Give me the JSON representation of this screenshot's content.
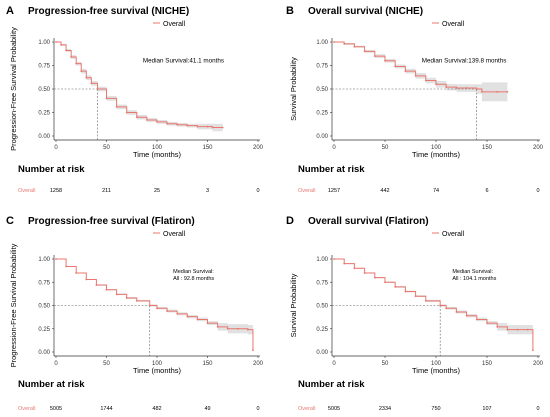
{
  "chart_data": [
    {
      "type": "line",
      "panel_label": "A",
      "title": "Progression-free survival (NICHE)",
      "legend": "Overall",
      "xlabel": "Time (months)",
      "ylabel": "Progression-Free Survival Probability",
      "xlim": [
        0,
        200
      ],
      "ylim": [
        0,
        1
      ],
      "x_ticks": [
        "0",
        "50",
        "100",
        "150",
        "200"
      ],
      "y_ticks": [
        "0.00",
        "0.25",
        "0.50",
        "0.75",
        "1.00"
      ],
      "median_label": "Median Survival:41.1 months",
      "median": 41.1,
      "series": [
        {
          "name": "Overall",
          "color": "#e8776f",
          "x": [
            0,
            5,
            10,
            15,
            20,
            25,
            30,
            35,
            41.1,
            50,
            60,
            70,
            80,
            90,
            100,
            110,
            120,
            130,
            140,
            150,
            155,
            165
          ],
          "y": [
            1.0,
            0.97,
            0.91,
            0.84,
            0.77,
            0.69,
            0.62,
            0.56,
            0.5,
            0.4,
            0.31,
            0.25,
            0.2,
            0.17,
            0.15,
            0.13,
            0.12,
            0.11,
            0.1,
            0.1,
            0.09,
            0.09
          ],
          "ci_width": [
            0,
            0.01,
            0.015,
            0.02,
            0.02,
            0.025,
            0.025,
            0.025,
            0.025,
            0.025,
            0.025,
            0.025,
            0.025,
            0.02,
            0.02,
            0.02,
            0.02,
            0.02,
            0.03,
            0.03,
            0.04,
            0.06
          ]
        }
      ],
      "risk_table": {
        "title": "Number at risk",
        "label": "Overall",
        "times": [
          0,
          50,
          100,
          150,
          200
        ],
        "counts": [
          "1258",
          "211",
          "25",
          "3",
          "0"
        ]
      }
    },
    {
      "type": "line",
      "panel_label": "B",
      "title": "Overall survival (NICHE)",
      "legend": "Overall",
      "xlabel": "Time (months)",
      "ylabel": "Survival Probability",
      "xlim": [
        0,
        200
      ],
      "ylim": [
        0,
        1
      ],
      "x_ticks": [
        "0",
        "50",
        "100",
        "150",
        "200"
      ],
      "y_ticks": [
        "0.00",
        "0.25",
        "0.50",
        "0.75",
        "1.00"
      ],
      "median_label": "Median Survival:139.8 months",
      "median": 139.8,
      "series": [
        {
          "name": "Overall",
          "color": "#e8776f",
          "x": [
            0,
            10,
            20,
            30,
            40,
            50,
            60,
            70,
            80,
            90,
            100,
            110,
            120,
            130,
            139.8,
            145,
            160,
            170
          ],
          "y": [
            1.0,
            0.98,
            0.95,
            0.9,
            0.85,
            0.8,
            0.74,
            0.69,
            0.64,
            0.59,
            0.55,
            0.52,
            0.51,
            0.51,
            0.5,
            0.47,
            0.47,
            0.47
          ],
          "ci_width": [
            0,
            0.01,
            0.01,
            0.015,
            0.02,
            0.02,
            0.02,
            0.025,
            0.03,
            0.03,
            0.035,
            0.035,
            0.04,
            0.04,
            0.05,
            0.1,
            0.1,
            0.1
          ]
        }
      ],
      "risk_table": {
        "title": "Number at risk",
        "label": "Overall",
        "times": [
          0,
          50,
          100,
          150,
          200
        ],
        "counts": [
          "1257",
          "442",
          "74",
          "6",
          "0"
        ]
      }
    },
    {
      "type": "line",
      "panel_label": "C",
      "title": "Progression-free survival (Flatiron)",
      "legend": "Overall",
      "xlabel": "Time (months)",
      "ylabel": "Progression-Free Survival Probability",
      "xlim": [
        0,
        200
      ],
      "ylim": [
        0,
        1
      ],
      "x_ticks": [
        "0",
        "50",
        "100",
        "150",
        "200"
      ],
      "y_ticks": [
        "0.00",
        "0.25",
        "0.50",
        "0.75",
        "1.00"
      ],
      "median_label_lines": [
        "Median Survival:",
        "All : 92.8  months"
      ],
      "median": 92.8,
      "series": [
        {
          "name": "Overall",
          "color": "#e8776f",
          "x": [
            0,
            10,
            20,
            30,
            40,
            50,
            60,
            70,
            80,
            92.8,
            100,
            110,
            120,
            130,
            140,
            150,
            160,
            170,
            180,
            190,
            195
          ],
          "y": [
            1.0,
            0.92,
            0.85,
            0.78,
            0.72,
            0.67,
            0.62,
            0.58,
            0.55,
            0.5,
            0.47,
            0.44,
            0.41,
            0.38,
            0.35,
            0.31,
            0.27,
            0.25,
            0.25,
            0.24,
            0.02
          ],
          "ci_width": [
            0,
            0.005,
            0.005,
            0.006,
            0.007,
            0.008,
            0.009,
            0.01,
            0.01,
            0.012,
            0.013,
            0.015,
            0.016,
            0.018,
            0.02,
            0.02,
            0.04,
            0.05,
            0.05,
            0.05,
            0.02
          ]
        }
      ],
      "risk_table": {
        "title": "Number at risk",
        "label": "Overall",
        "times": [
          0,
          50,
          100,
          150,
          200
        ],
        "counts": [
          "5005",
          "1744",
          "482",
          "49",
          "0"
        ]
      }
    },
    {
      "type": "line",
      "panel_label": "D",
      "title": "Overall survival (Flatiron)",
      "legend": "Overall",
      "xlabel": "Time (months)",
      "ylabel": "Survival Probability",
      "xlim": [
        0,
        200
      ],
      "ylim": [
        0,
        1
      ],
      "x_ticks": [
        "0",
        "50",
        "100",
        "150",
        "200"
      ],
      "y_ticks": [
        "0.00",
        "0.25",
        "0.50",
        "0.75",
        "1.00"
      ],
      "median_label_lines": [
        "Median Survival:",
        "All : 104.1  months"
      ],
      "median": 104.1,
      "series": [
        {
          "name": "Overall",
          "color": "#e8776f",
          "x": [
            0,
            10,
            20,
            30,
            40,
            50,
            60,
            70,
            80,
            90,
            104.1,
            110,
            120,
            130,
            140,
            150,
            160,
            170,
            180,
            190,
            195
          ],
          "y": [
            1.0,
            0.95,
            0.9,
            0.85,
            0.8,
            0.75,
            0.7,
            0.65,
            0.6,
            0.55,
            0.5,
            0.47,
            0.43,
            0.39,
            0.35,
            0.31,
            0.27,
            0.24,
            0.24,
            0.24,
            0.02
          ],
          "ci_width": [
            0,
            0.005,
            0.005,
            0.006,
            0.007,
            0.008,
            0.009,
            0.01,
            0.01,
            0.012,
            0.013,
            0.015,
            0.016,
            0.018,
            0.02,
            0.02,
            0.04,
            0.05,
            0.05,
            0.05,
            0.02
          ]
        }
      ],
      "risk_table": {
        "title": "Number at risk",
        "label": "Overall",
        "times": [
          0,
          50,
          100,
          150,
          200
        ],
        "counts": [
          "5005",
          "2334",
          "750",
          "107",
          "0"
        ]
      }
    }
  ]
}
